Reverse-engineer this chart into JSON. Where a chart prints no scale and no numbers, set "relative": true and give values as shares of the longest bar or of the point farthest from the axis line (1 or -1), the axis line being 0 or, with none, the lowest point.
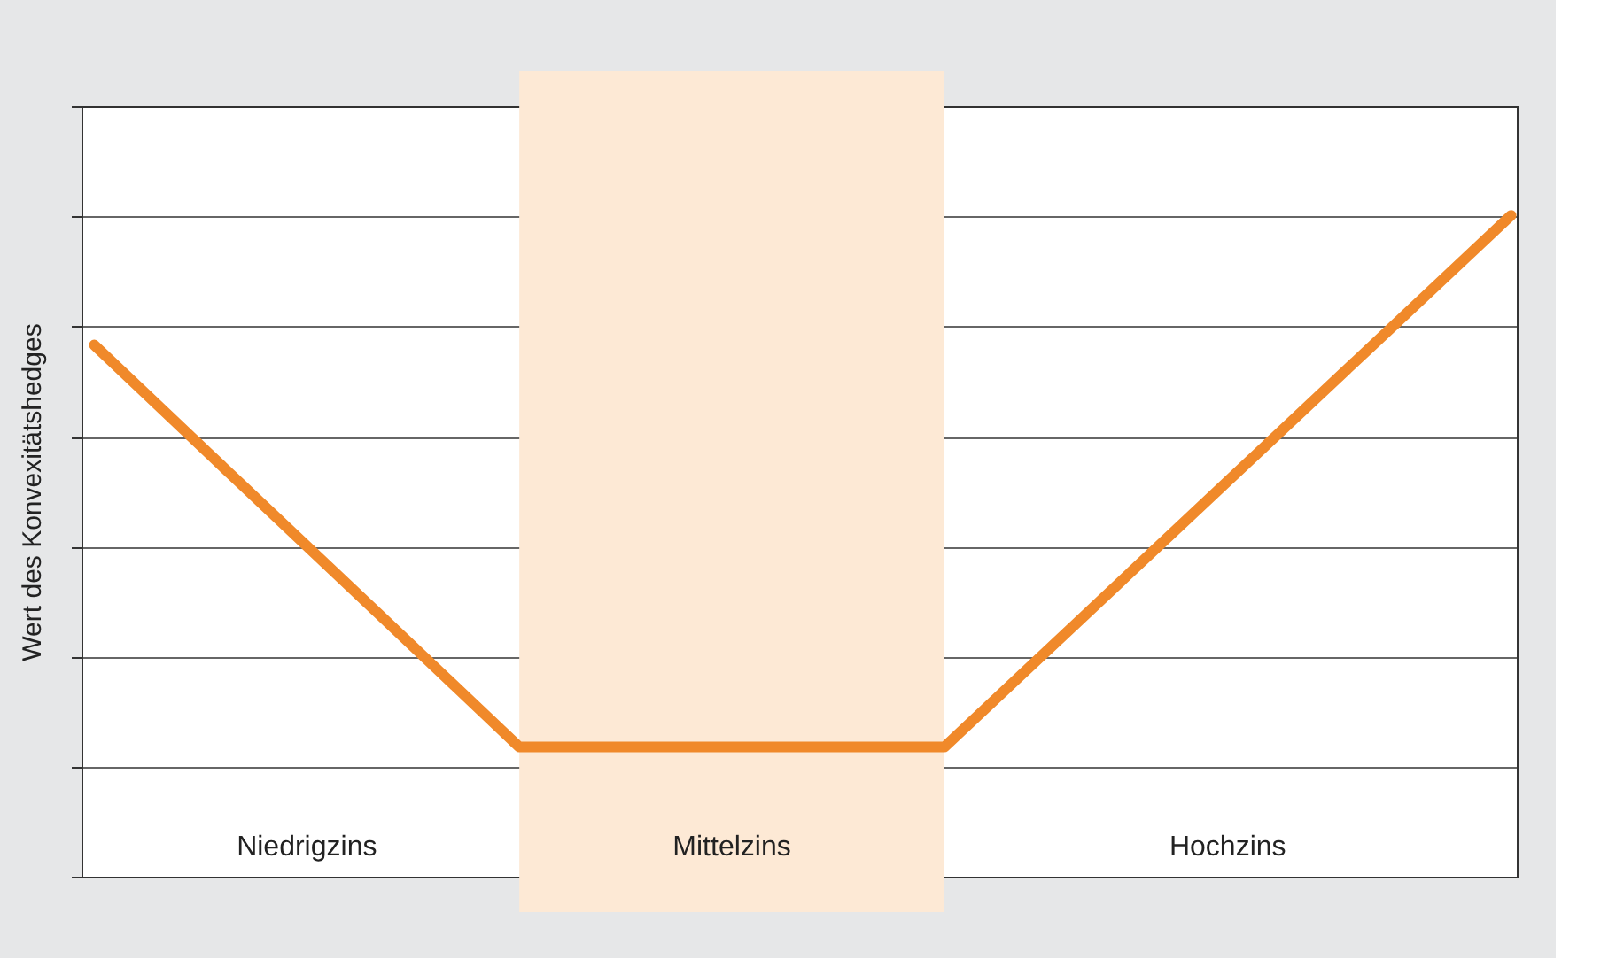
{
  "chart_data": {
    "type": "line",
    "relative": true,
    "ylabel": "Wert des Konvexitätshedges",
    "categories": [
      null,
      null,
      null,
      null,
      null,
      null,
      null,
      null,
      null,
      null,
      null
    ],
    "series": [
      {
        "color": "#f0892a",
        "values": [
          0.804,
          0.601,
          0.399,
          0.196,
          0.196,
          0.196,
          0.196,
          0.397,
          0.598,
          0.799,
          1
        ]
      }
    ],
    "annotations": [
      "Niedrigzins",
      "Mittelzins",
      "Hochzins"
    ],
    "grid": "y",
    "marker": "none",
    "line_style": "solid"
  }
}
